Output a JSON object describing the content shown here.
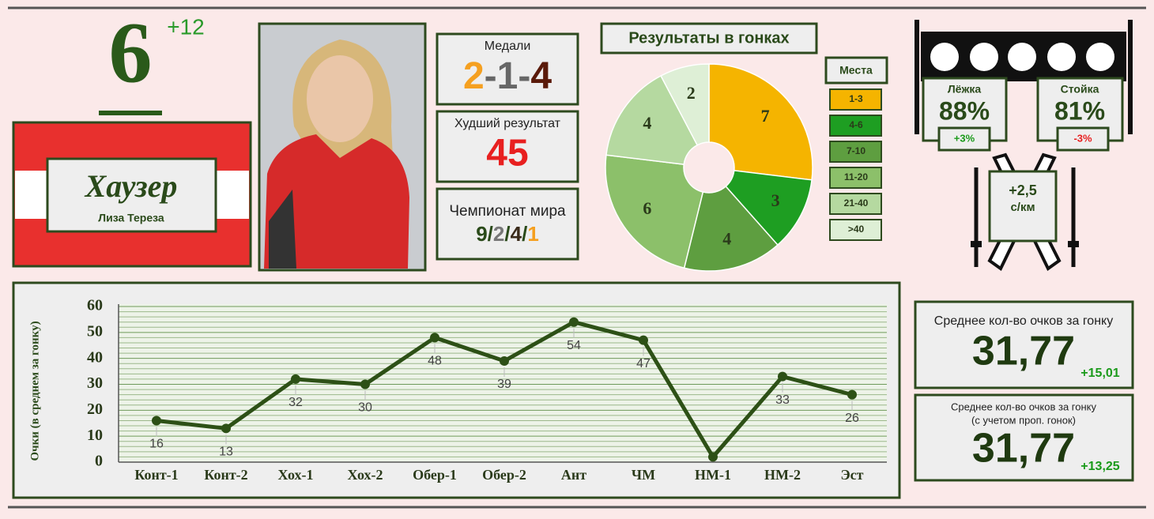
{
  "rank": {
    "value": 6,
    "change": "+12"
  },
  "athlete": {
    "surname": "Хаузер",
    "given_names": "Лиза Тереза"
  },
  "medals": {
    "label": "Медали",
    "gold": 2,
    "silver": 1,
    "bronze": 4,
    "separator": "-"
  },
  "worst": {
    "label": "Худший результат",
    "value": 45
  },
  "championship": {
    "label": "Чемпионат мира",
    "values": [
      9,
      2,
      4,
      1
    ],
    "separator": "/"
  },
  "shooting": {
    "prone": {
      "label": "Лёжка",
      "accuracy": "88%",
      "change": "+3%"
    },
    "standing": {
      "label": "Стойка",
      "accuracy": "81%",
      "change": "-3%"
    }
  },
  "skiing": {
    "speed": "+2,5",
    "unit": "с/км"
  },
  "stats": [
    {
      "label": "Среднее кол-во очков за гонку",
      "value": "31,77",
      "change": "+15,01"
    },
    {
      "label": "Среднее кол-во очков за гонку",
      "note": "(с учетом проп. гонок)",
      "value": "31,77",
      "change": "+13,25"
    }
  ],
  "chart_data": [
    {
      "type": "pie",
      "title": "Результаты в гонках",
      "legend_title": "Места",
      "categories": [
        "1-3",
        "4-6",
        "7-10",
        "11-20",
        "21-40",
        ">40"
      ],
      "values": [
        7,
        3,
        4,
        6,
        4,
        2
      ],
      "colors": [
        "#f5b400",
        "#1e9e22",
        "#5e9e40",
        "#8cc06a",
        "#b5d9a0",
        "#deefd6"
      ]
    },
    {
      "type": "line",
      "y_label": "Очки (в среднем за гонку)",
      "categories": [
        "Конт-1",
        "Конт-2",
        "Хох-1",
        "Хох-2",
        "Обер-1",
        "Обер-2",
        "Ант",
        "ЧМ",
        "НМ-1",
        "НМ-2",
        "Эст"
      ],
      "values": [
        16,
        13,
        32,
        30,
        48,
        39,
        54,
        47,
        2,
        33,
        26
      ],
      "value_labels": [
        "16",
        "13",
        "32",
        "30",
        "48",
        "39",
        "54",
        "47",
        null,
        "33",
        "26"
      ],
      "color": "#2d5016",
      "ylim": [
        0,
        60
      ],
      "yticks": [
        0,
        10,
        20,
        30,
        40,
        50,
        60
      ],
      "minor_yticks": [
        2,
        4,
        6,
        8,
        12,
        14,
        16,
        18,
        22,
        24,
        26,
        28,
        32,
        34,
        36,
        38,
        42,
        44,
        46,
        48,
        52,
        54,
        56,
        58
      ],
      "grid": true
    }
  ]
}
